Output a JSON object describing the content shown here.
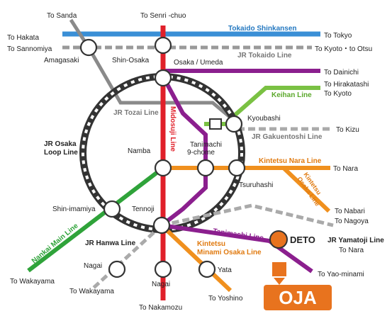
{
  "lines": {
    "tokaido_shinkansen": {
      "name": "Tokaido Shinkansen",
      "color": "#3a8fd6"
    },
    "jr_tokaido": {
      "name": "JR Tokaido Line",
      "color": "#999999"
    },
    "midosuji": {
      "name": "Midosuji Line",
      "color": "#e0202a"
    },
    "jr_tozai": {
      "name": "JR Tozai Line",
      "color": "#8a8a8a"
    },
    "keihan": {
      "name": "Keihan Line",
      "color": "#7ac143"
    },
    "jr_gakuentoshi": {
      "name": "JR Gakuentoshi Line",
      "color": "#aaaaaa"
    },
    "kintetsu_nara": {
      "name": "Kintetsu Nara Line",
      "color": "#f0901e"
    },
    "kintetsu_osaka": {
      "name": "Kintetsu Osaka Line",
      "color": "#f0901e"
    },
    "tanimachi": {
      "name": "Tanimachi Line",
      "color": "#8b1f8e"
    },
    "jr_osaka_loop": {
      "name": "JR Osaka Loop Line",
      "color": "#333333"
    },
    "nankai_main": {
      "name": "Nankai Main Line",
      "color": "#2fa33a"
    },
    "jr_hanwa": {
      "name": "JR Hanwa Line",
      "color": "#aaaaaa"
    },
    "kintetsu_minami_osaka": {
      "name": "Kintetsu Minami Osaka Line",
      "color": "#f0901e"
    },
    "jr_yamatoji": {
      "name": "JR Yamatoji Line",
      "color": "#aaaaaa"
    }
  },
  "stations": {
    "shin_osaka": "Shin-Osaka",
    "amagasaki": "Amagasaki",
    "osaka_umeda": "Osaka / Umeda",
    "kyoubashi": "Kyoubashi",
    "tanimachi_9": "Tanimachi\n9-chome",
    "namba": "Namba",
    "tsuruhashi": "Tsuruhashi",
    "shin_imamiya": "Shin-imamiya",
    "tennoji": "Tennoji",
    "nagai_1": "Nagai",
    "nagai_2": "Nagai",
    "yata": "Yata"
  },
  "destinations": {
    "sanda": "To Sanda",
    "senri_chuo": "To Senri -chuo",
    "hakata": "To Hakata",
    "tokyo": "To Tokyo",
    "sannomiya": "To Sannomiya",
    "kyoto_otsu": "To Kyoto・to Otsu",
    "dainichi": "To Dainichi",
    "hirakatashi": "To Hirakatashi",
    "kyoto": "To Kyoto",
    "kizu": "To Kizu",
    "nara": "To Nara",
    "nabari": "To Nabari",
    "nagoya": "To Nagoya",
    "nara_2": "To Nara",
    "yao_minami": "To Yao-minami",
    "wakayama_1": "To Wakayama",
    "wakayama_2": "To Wakayama",
    "nakamozu": "To Nakamozu",
    "yoshino": "To Yoshino"
  },
  "markers": {
    "deto": "DETO",
    "oja": "OJA",
    "marker_color": "#e8731e"
  }
}
